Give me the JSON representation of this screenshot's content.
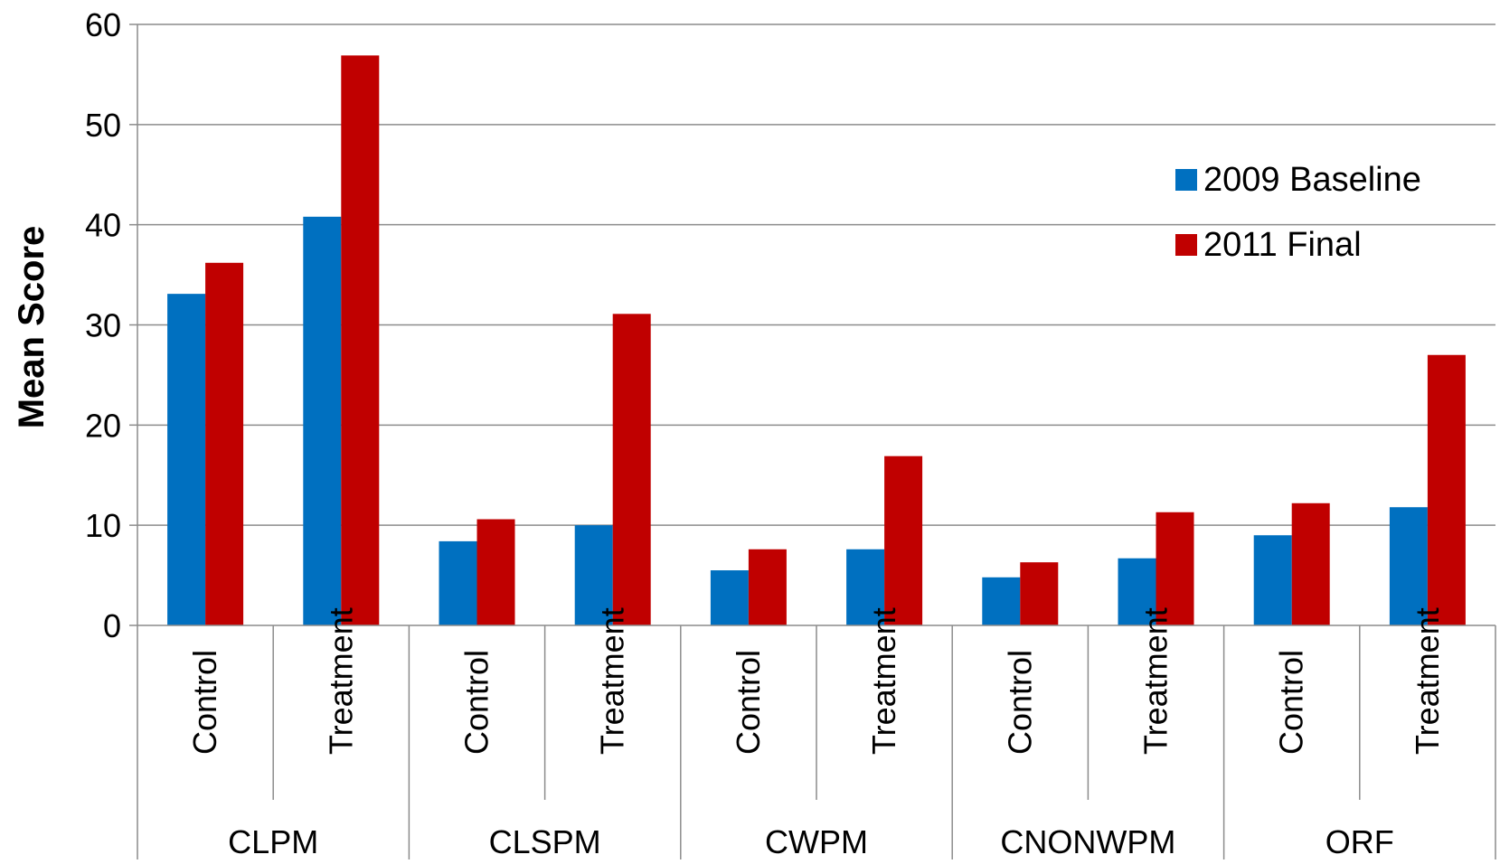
{
  "chart_data": {
    "type": "bar",
    "title": "",
    "ylabel": "Mean Score",
    "xlabel": "",
    "ylim": [
      0,
      60
    ],
    "yticks": [
      0,
      10,
      20,
      30,
      40,
      50,
      60
    ],
    "grid": true,
    "legend_position": "right",
    "groups": [
      {
        "label": "CLPM",
        "subcategories": [
          "Control",
          "Treatment"
        ]
      },
      {
        "label": "CLSPM",
        "subcategories": [
          "Control",
          "Treatment"
        ]
      },
      {
        "label": "CWPM",
        "subcategories": [
          "Control",
          "Treatment"
        ]
      },
      {
        "label": "CNONWPM",
        "subcategories": [
          "Control",
          "Treatment"
        ]
      },
      {
        "label": "ORF",
        "subcategories": [
          "Control",
          "Treatment"
        ]
      }
    ],
    "series": [
      {
        "name": "2009 Baseline",
        "color": "#0070C0",
        "values": [
          33.1,
          40.8,
          8.4,
          10.0,
          5.5,
          7.6,
          4.8,
          6.7,
          9.0,
          11.8
        ]
      },
      {
        "name": "2011 Final",
        "color": "#C00000",
        "values": [
          36.2,
          56.9,
          10.6,
          31.1,
          7.6,
          16.9,
          6.3,
          11.3,
          12.2,
          27.0
        ]
      }
    ]
  }
}
